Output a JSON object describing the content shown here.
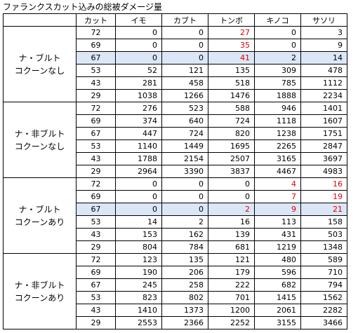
{
  "title": "ファランクスカット込みの総被ダメージ量",
  "headers": [
    "カット",
    "イモ",
    "カブト",
    "トンボ",
    "キノコ",
    "サソリ"
  ],
  "colors": {
    "highlight": "#dbe7f6",
    "red_text": "#e00000",
    "border": "#000000"
  },
  "groups": [
    {
      "label_line1": "ナ・ブルト",
      "label_line2": "コクーンなし",
      "rows": [
        {
          "cut": "72",
          "values": [
            "0",
            "0",
            "27",
            "0",
            "3"
          ],
          "red": [
            false,
            false,
            true,
            false,
            false
          ],
          "highlight": false
        },
        {
          "cut": "69",
          "values": [
            "0",
            "0",
            "35",
            "0",
            "9"
          ],
          "red": [
            false,
            false,
            true,
            false,
            false
          ],
          "highlight": false
        },
        {
          "cut": "67",
          "values": [
            "0",
            "0",
            "41",
            "2",
            "14"
          ],
          "red": [
            false,
            false,
            true,
            false,
            false
          ],
          "highlight": true
        },
        {
          "cut": "53",
          "values": [
            "52",
            "121",
            "135",
            "309",
            "478"
          ],
          "red": [
            false,
            false,
            false,
            false,
            false
          ],
          "highlight": false
        },
        {
          "cut": "43",
          "values": [
            "281",
            "458",
            "518",
            "785",
            "1112"
          ],
          "red": [
            false,
            false,
            false,
            false,
            false
          ],
          "highlight": false
        },
        {
          "cut": "29",
          "values": [
            "1038",
            "1266",
            "1476",
            "1888",
            "2234"
          ],
          "red": [
            false,
            false,
            false,
            false,
            false
          ],
          "highlight": false
        }
      ]
    },
    {
      "label_line1": "ナ・非ブルト",
      "label_line2": "コクーンなし",
      "rows": [
        {
          "cut": "72",
          "values": [
            "276",
            "523",
            "588",
            "946",
            "1401"
          ],
          "red": [
            false,
            false,
            false,
            false,
            false
          ],
          "highlight": false
        },
        {
          "cut": "69",
          "values": [
            "374",
            "640",
            "724",
            "1118",
            "1607"
          ],
          "red": [
            false,
            false,
            false,
            false,
            false
          ],
          "highlight": false
        },
        {
          "cut": "67",
          "values": [
            "447",
            "724",
            "820",
            "1238",
            "1751"
          ],
          "red": [
            false,
            false,
            false,
            false,
            false
          ],
          "highlight": false
        },
        {
          "cut": "53",
          "values": [
            "1140",
            "1449",
            "1695",
            "2265",
            "2847"
          ],
          "red": [
            false,
            false,
            false,
            false,
            false
          ],
          "highlight": false
        },
        {
          "cut": "43",
          "values": [
            "1788",
            "2154",
            "2507",
            "3165",
            "3697"
          ],
          "red": [
            false,
            false,
            false,
            false,
            false
          ],
          "highlight": false
        },
        {
          "cut": "29",
          "values": [
            "2964",
            "3390",
            "3837",
            "4467",
            "4983"
          ],
          "red": [
            false,
            false,
            false,
            false,
            false
          ],
          "highlight": false
        }
      ]
    },
    {
      "label_line1": "ナ・ブルト",
      "label_line2": "コクーンあり",
      "rows": [
        {
          "cut": "72",
          "values": [
            "0",
            "0",
            "0",
            "4",
            "16"
          ],
          "red": [
            false,
            false,
            false,
            true,
            true
          ],
          "highlight": false
        },
        {
          "cut": "69",
          "values": [
            "0",
            "0",
            "0",
            "7",
            "19"
          ],
          "red": [
            false,
            false,
            false,
            true,
            true
          ],
          "highlight": false
        },
        {
          "cut": "67",
          "values": [
            "0",
            "0",
            "2",
            "9",
            "21"
          ],
          "red": [
            false,
            false,
            true,
            true,
            true
          ],
          "highlight": true
        },
        {
          "cut": "53",
          "values": [
            "14",
            "2",
            "16",
            "113",
            "158"
          ],
          "red": [
            false,
            false,
            false,
            false,
            false
          ],
          "highlight": false
        },
        {
          "cut": "43",
          "values": [
            "153",
            "162",
            "139",
            "431",
            "503"
          ],
          "red": [
            false,
            false,
            false,
            false,
            false
          ],
          "highlight": false
        },
        {
          "cut": "29",
          "values": [
            "804",
            "784",
            "681",
            "1219",
            "1348"
          ],
          "red": [
            false,
            false,
            false,
            false,
            false
          ],
          "highlight": false
        }
      ]
    },
    {
      "label_line1": "ナ・非ブルト",
      "label_line2": "コクーンあり",
      "rows": [
        {
          "cut": "72",
          "values": [
            "123",
            "135",
            "121",
            "480",
            "589"
          ],
          "red": [
            false,
            false,
            false,
            false,
            false
          ],
          "highlight": false
        },
        {
          "cut": "69",
          "values": [
            "190",
            "206",
            "179",
            "596",
            "710"
          ],
          "red": [
            false,
            false,
            false,
            false,
            false
          ],
          "highlight": false
        },
        {
          "cut": "67",
          "values": [
            "245",
            "258",
            "222",
            "682",
            "794"
          ],
          "red": [
            false,
            false,
            false,
            false,
            false
          ],
          "highlight": false
        },
        {
          "cut": "53",
          "values": [
            "823",
            "802",
            "701",
            "1415",
            "1562"
          ],
          "red": [
            false,
            false,
            false,
            false,
            false
          ],
          "highlight": false
        },
        {
          "cut": "43",
          "values": [
            "1410",
            "1373",
            "1200",
            "2061",
            "2282"
          ],
          "red": [
            false,
            false,
            false,
            false,
            false
          ],
          "highlight": false
        },
        {
          "cut": "29",
          "values": [
            "2553",
            "2366",
            "2252",
            "3155",
            "3466"
          ],
          "red": [
            false,
            false,
            false,
            false,
            false
          ],
          "highlight": false
        }
      ]
    }
  ]
}
